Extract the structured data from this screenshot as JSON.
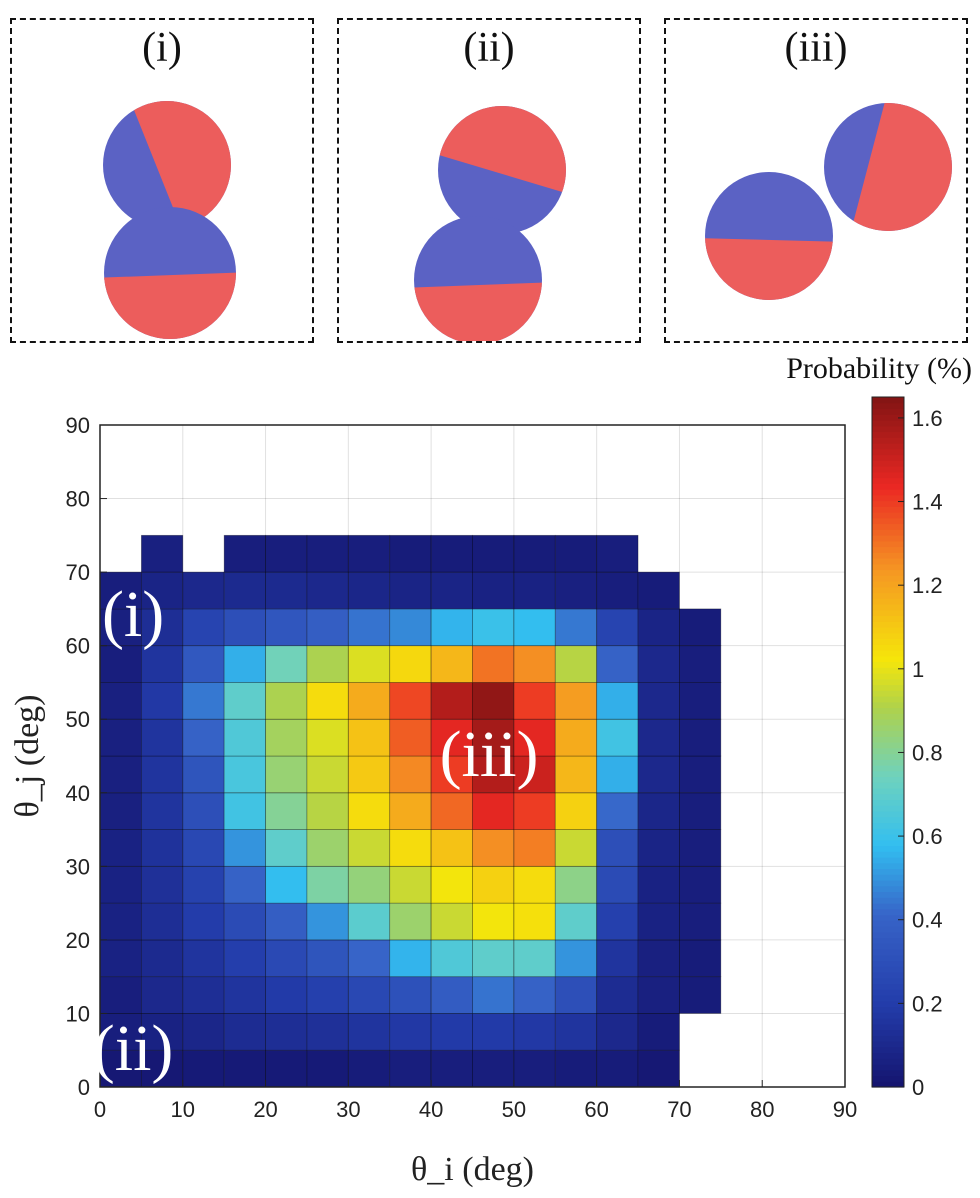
{
  "panels": [
    {
      "label": "(i)"
    },
    {
      "label": "(ii)"
    },
    {
      "label": "(iii)"
    }
  ],
  "colors": {
    "blue_hemisphere": "#5b62c4",
    "red_hemisphere": "#ec5d5c",
    "empty_cell": "#ffffff"
  },
  "chart_data": {
    "type": "heatmap",
    "xlabel": "θ_i (deg)",
    "ylabel": "θ_j (deg)",
    "xlim": [
      0,
      90
    ],
    "ylim": [
      0,
      90
    ],
    "xticks": [
      0,
      10,
      20,
      30,
      40,
      50,
      60,
      70,
      80,
      90
    ],
    "yticks": [
      0,
      10,
      20,
      30,
      40,
      50,
      60,
      70,
      80,
      90
    ],
    "bin_width": 5,
    "grid": true,
    "colormap": "jet",
    "colorbar": {
      "title": "Probability (%)",
      "range": [
        0,
        1.65
      ],
      "ticks": [
        "0",
        "0.2",
        "0.4",
        "0.6",
        "0.8",
        "1",
        "1.2",
        "1.4",
        "1.6"
      ]
    },
    "overlay_labels": [
      {
        "text": "(i)",
        "theta_i": 4,
        "theta_j": 64
      },
      {
        "text": "(ii)",
        "theta_i": 4,
        "theta_j": 5
      },
      {
        "text": "(iii)",
        "theta_i": 47,
        "theta_j": 45
      }
    ],
    "values": [
      [
        0.02,
        0.02,
        0.03,
        0.03,
        0.03,
        0.03,
        0.04,
        0.05,
        0.05,
        0.05,
        0.05,
        0.04,
        0.04,
        0.02,
        null,
        null,
        null,
        null
      ],
      [
        0.05,
        0.07,
        0.09,
        0.12,
        0.13,
        0.14,
        0.16,
        0.18,
        0.19,
        0.19,
        0.18,
        0.16,
        0.1,
        0.04,
        null,
        null,
        null,
        null
      ],
      [
        0.05,
        0.1,
        0.13,
        0.16,
        0.19,
        0.22,
        0.26,
        0.31,
        0.37,
        0.44,
        0.4,
        0.3,
        0.12,
        0.06,
        0.04,
        null,
        null,
        null
      ],
      [
        0.07,
        0.11,
        0.16,
        0.21,
        0.27,
        0.33,
        0.41,
        0.56,
        0.66,
        0.7,
        0.7,
        0.5,
        0.16,
        0.06,
        0.04,
        null,
        null,
        null
      ],
      [
        0.07,
        0.13,
        0.2,
        0.28,
        0.38,
        0.5,
        0.69,
        0.86,
        0.95,
        1.02,
        1.04,
        0.7,
        0.22,
        0.07,
        0.05,
        null,
        null,
        null
      ],
      [
        0.07,
        0.14,
        0.23,
        0.4,
        0.58,
        0.78,
        0.84,
        0.95,
        1.02,
        1.08,
        1.05,
        0.82,
        0.28,
        0.07,
        0.05,
        null,
        null,
        null
      ],
      [
        0.07,
        0.15,
        0.26,
        0.5,
        0.7,
        0.86,
        0.95,
        1.05,
        1.12,
        1.25,
        1.28,
        0.95,
        0.3,
        0.08,
        0.05,
        null,
        null,
        null
      ],
      [
        0.06,
        0.16,
        0.3,
        0.62,
        0.8,
        0.92,
        1.05,
        1.18,
        1.32,
        1.45,
        1.4,
        1.08,
        0.42,
        0.09,
        0.05,
        null,
        null,
        null
      ],
      [
        0.06,
        0.16,
        0.33,
        0.64,
        0.85,
        0.95,
        1.1,
        1.26,
        1.4,
        1.55,
        1.5,
        1.15,
        0.55,
        0.1,
        0.05,
        null,
        null,
        null
      ],
      [
        0.06,
        0.16,
        0.4,
        0.66,
        0.88,
        0.98,
        1.12,
        1.34,
        1.45,
        1.58,
        1.45,
        1.18,
        0.62,
        0.1,
        0.05,
        null,
        null,
        null
      ],
      [
        0.06,
        0.18,
        0.45,
        0.7,
        0.9,
        1.05,
        1.18,
        1.38,
        1.55,
        1.62,
        1.4,
        1.22,
        0.55,
        0.1,
        0.05,
        null,
        null,
        null
      ],
      [
        0.05,
        0.16,
        0.35,
        0.55,
        0.75,
        0.9,
        0.98,
        1.06,
        1.15,
        1.3,
        1.25,
        0.92,
        0.4,
        0.1,
        0.05,
        null,
        null,
        null
      ],
      [
        0.06,
        0.13,
        0.24,
        0.3,
        0.34,
        0.38,
        0.44,
        0.48,
        0.56,
        0.6,
        0.58,
        0.45,
        0.24,
        0.08,
        0.04,
        null,
        null,
        null
      ],
      [
        0.05,
        0.08,
        0.1,
        0.11,
        0.11,
        0.1,
        0.09,
        0.08,
        0.08,
        0.07,
        0.07,
        0.06,
        0.05,
        0.04,
        null,
        null,
        null,
        null
      ],
      [
        null,
        0.06,
        null,
        0.05,
        0.05,
        0.05,
        0.05,
        0.04,
        0.04,
        0.04,
        0.04,
        0.04,
        0.05,
        null,
        null,
        null,
        null,
        null
      ],
      [
        null,
        null,
        null,
        null,
        null,
        null,
        null,
        null,
        null,
        null,
        null,
        null,
        null,
        null,
        null,
        null,
        null,
        null
      ],
      [
        null,
        null,
        null,
        null,
        null,
        null,
        null,
        null,
        null,
        null,
        null,
        null,
        null,
        null,
        null,
        null,
        null,
        null
      ],
      [
        null,
        null,
        null,
        null,
        null,
        null,
        null,
        null,
        null,
        null,
        null,
        null,
        null,
        null,
        null,
        null,
        null,
        null
      ]
    ]
  }
}
